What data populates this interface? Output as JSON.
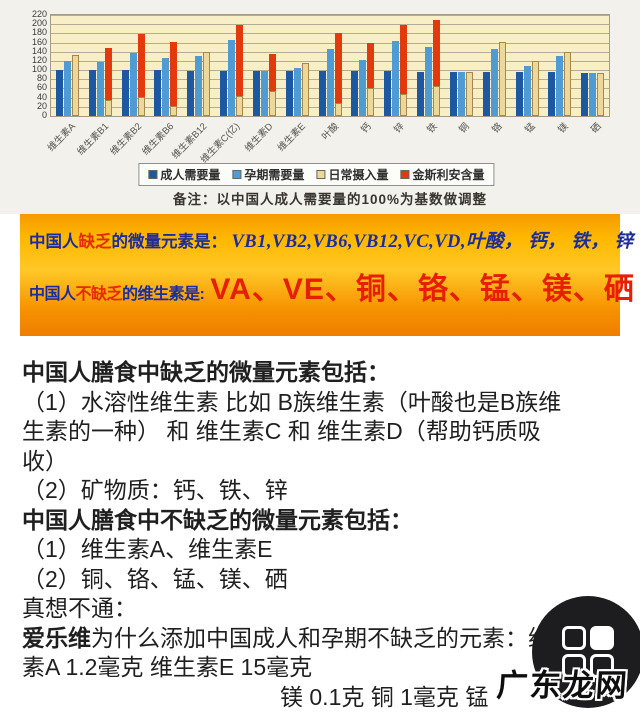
{
  "chart_data": {
    "type": "bar",
    "title": "",
    "xlabel": "",
    "ylabel": "",
    "ylim": [
      0,
      220
    ],
    "yticks": [
      0,
      20,
      40,
      60,
      80,
      100,
      120,
      140,
      160,
      180,
      200,
      220
    ],
    "grid": true,
    "legend_position": "bottom",
    "note": "备注：以中国人成人需要量的100%为基数做调整",
    "categories": [
      "维生素A",
      "维生素B1",
      "维生素B2",
      "维生素B6",
      "维生素B12",
      "维生素C(亿)",
      "维生素D",
      "维生素E",
      "叶酸",
      "钙",
      "锌",
      "铁",
      "铜",
      "铬",
      "锰",
      "镁",
      "硒"
    ],
    "series": [
      {
        "name": "成人需要量",
        "color": "#1d58a2",
        "values": [
          100,
          100,
          100,
          100,
          98,
          98,
          98,
          99,
          98,
          98,
          97,
          96,
          95,
          95,
          95,
          95,
          94
        ]
      },
      {
        "name": "孕期需要量",
        "color": "#4f9bd4",
        "values": [
          120,
          118,
          138,
          127,
          131,
          165,
          98,
          104,
          146,
          122,
          163,
          151,
          95,
          145,
          110,
          130,
          94
        ]
      },
      {
        "name": "日常摄入量",
        "color": "#ecd89b",
        "values": [
          132,
          35,
          42,
          22,
          140,
          43,
          55,
          116,
          28,
          61,
          47,
          66,
          95,
          162,
          120,
          140,
          93
        ]
      },
      {
        "name": "金斯利安含量",
        "color": "#e23a0c",
        "stacked_on": "日常摄入量",
        "values": [
          0,
          148,
          178,
          161,
          0,
          198,
          135,
          0,
          181,
          158,
          199,
          210,
          0,
          0,
          0,
          0,
          0
        ]
      }
    ]
  },
  "banner": {
    "background_top": "#f59a00",
    "background_mid": "#ffc826",
    "background_bottom": "#ee7e00",
    "navy_color": "#1b2d9e",
    "red_color": "#e52a00",
    "line1": {
      "prefix": "中国人",
      "highlight": "缺乏",
      "mid": "的微量元素是：",
      "values": "VB1,VB2,VB6,VB12,VC,VD,叶酸， 钙， 铁， 锌"
    },
    "line2": {
      "prefix": "中国人",
      "highlight": "不缺乏",
      "mid": "的维生素是:",
      "values": "VA、VE、铜、铬、锰、镁、硒"
    }
  },
  "article": {
    "lines": [
      {
        "segments": [
          {
            "t": "中国人膳食中缺乏的微量元素包括：",
            "b": true
          }
        ]
      },
      {
        "segments": [
          {
            "t": "（1）水溶性维生素 比如 B族维生素（叶酸也是B族维",
            "b": false
          }
        ]
      },
      {
        "segments": [
          {
            "t": "生素的一种） 和 维生素C 和 维生素D（帮助钙质吸",
            "b": false
          }
        ]
      },
      {
        "segments": [
          {
            "t": "收）",
            "b": false
          }
        ]
      },
      {
        "segments": [
          {
            "t": "（2）矿物质：钙、铁、锌",
            "b": false
          }
        ]
      },
      {
        "segments": [
          {
            "t": "中国人膳食中不缺乏的微量元素包括：",
            "b": true
          }
        ]
      },
      {
        "segments": [
          {
            "t": "（1）维生素A、维生素E",
            "b": false
          }
        ]
      },
      {
        "segments": [
          {
            "t": "（2）铜、铬、锰、镁、硒",
            "b": false
          }
        ]
      },
      {
        "segments": [
          {
            "t": "真想不通：",
            "b": false
          }
        ]
      },
      {
        "segments": [
          {
            "t": "爱乐维",
            "b": true
          },
          {
            "t": "为什么添加中国成人和孕期不缺乏的元素：维生",
            "b": false
          }
        ]
      },
      {
        "segments": [
          {
            "t": "素A 1.2毫克 维生素E 15毫克",
            "b": false
          }
        ]
      },
      {
        "segments": [
          {
            "t": "镁 0.1克 铜 1毫克 锰",
            "b": false
          }
        ],
        "indent": 258
      }
    ]
  },
  "icons": {
    "grid_icon": "app-grid-2x2",
    "grid_icon_filled_cell": "top-right"
  },
  "watermark": {
    "text": "广东龙网"
  }
}
